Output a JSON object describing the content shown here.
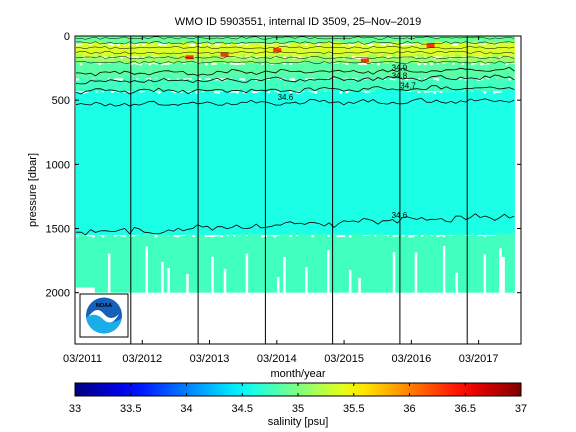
{
  "chart_data": [
    {
      "type": "heatmap",
      "title": "WMO ID 5903551, internal ID 3509, 25–Nov–2019",
      "xlabel": "month/year",
      "ylabel": "pressure [dbar]",
      "x_tick_labels": [
        "03/2011",
        "03/2012",
        "03/2013",
        "03/2014",
        "03/2015",
        "03/2016",
        "03/2017"
      ],
      "x_ticks": [
        2011.17,
        2012.17,
        2013.17,
        2014.17,
        2015.17,
        2016.17,
        2017.17
      ],
      "xlim": [
        2011.17,
        2017.8
      ],
      "y_ticks": [
        0,
        500,
        1000,
        1500,
        2000
      ],
      "ylim": [
        0,
        2400
      ],
      "y_reversed": true,
      "year_dividers": [
        2012.0,
        2013.0,
        2014.0,
        2015.0,
        2016.0,
        2017.0
      ],
      "value_range": [
        33,
        37
      ],
      "colormap": "jet",
      "layers": [
        {
          "top": 0,
          "bottom": 60,
          "salinity": 34.9
        },
        {
          "top": 60,
          "bottom": 160,
          "salinity": 35.35
        },
        {
          "top": 160,
          "bottom": 210,
          "salinity": 35.1
        },
        {
          "top": 210,
          "bottom": 330,
          "salinity": 34.85
        },
        {
          "top": 330,
          "bottom": 430,
          "salinity": 34.75
        },
        {
          "top": 430,
          "bottom": 1550,
          "salinity": 34.6
        },
        {
          "top": 1550,
          "bottom": 2000,
          "salinity": 34.75
        }
      ],
      "contours": [
        {
          "label": "34.9",
          "mean_pressure": 280
        },
        {
          "label": "34.8",
          "mean_pressure": 340
        },
        {
          "label": "34.7",
          "mean_pressure": 420
        },
        {
          "label": "34.6",
          "mean_pressure": 520
        },
        {
          "label": "34.6",
          "mean_pressure": 1430
        }
      ],
      "contour_labels": [
        "34.9",
        "34.8",
        "34.7",
        "34.6",
        "34.6"
      ]
    },
    {
      "type": "colorbar",
      "label": "salinity [psu]",
      "tick_labels": [
        "33",
        "33.5",
        "34",
        "34.5",
        "35",
        "35.5",
        "36",
        "36.5",
        "37"
      ],
      "ticks": [
        33,
        33.5,
        34,
        34.5,
        35,
        35.5,
        36,
        36.5,
        37
      ],
      "range": [
        33,
        37
      ],
      "colormap": "jet"
    }
  ],
  "logo": {
    "text": "NOAA",
    "colors": {
      "sky": "#1560b8",
      "sea": "#19aee8",
      "bird": "#ffffff"
    }
  }
}
